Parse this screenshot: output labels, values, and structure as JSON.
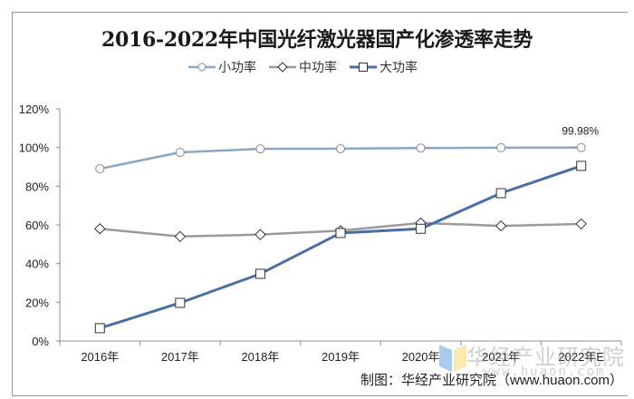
{
  "chart_data": {
    "type": "line",
    "title": "2016-2022年中国光纤激光器国产化渗透率走势",
    "categories": [
      "2016年",
      "2017年",
      "2018年",
      "2019年",
      "2020年",
      "2021年",
      "2022年E"
    ],
    "series": [
      {
        "name": "小功率",
        "marker": "circle",
        "color": "#8aa6c8",
        "values": [
          89.0,
          97.5,
          99.3,
          99.4,
          99.7,
          99.9,
          99.98
        ]
      },
      {
        "name": "中功率",
        "marker": "diamond",
        "color": "#9a9a9a",
        "values": [
          58.0,
          54.0,
          55.0,
          57.0,
          61.0,
          59.5,
          60.5
        ]
      },
      {
        "name": "大功率",
        "marker": "square",
        "color": "#4a6ea8",
        "values": [
          6.6,
          19.7,
          34.7,
          55.8,
          58.0,
          76.4,
          90.5
        ]
      }
    ],
    "xlabel": "",
    "ylabel": "",
    "ylim": [
      0,
      120
    ],
    "yticks": [
      "0%",
      "20%",
      "40%",
      "60%",
      "80%",
      "100%",
      "120%"
    ],
    "grid": false,
    "legend_position": "top",
    "annotations": [
      {
        "series": "小功率",
        "category": "2022年E",
        "text": "99.98%"
      }
    ]
  },
  "legend": {
    "items": [
      {
        "label": "小功率"
      },
      {
        "label": "中功率"
      },
      {
        "label": "大功率"
      }
    ]
  },
  "watermark": {
    "name": "华经产业研究院",
    "url": "www.huaon.com"
  },
  "source": "制图：华经产业研究院（www.huaon.com）"
}
